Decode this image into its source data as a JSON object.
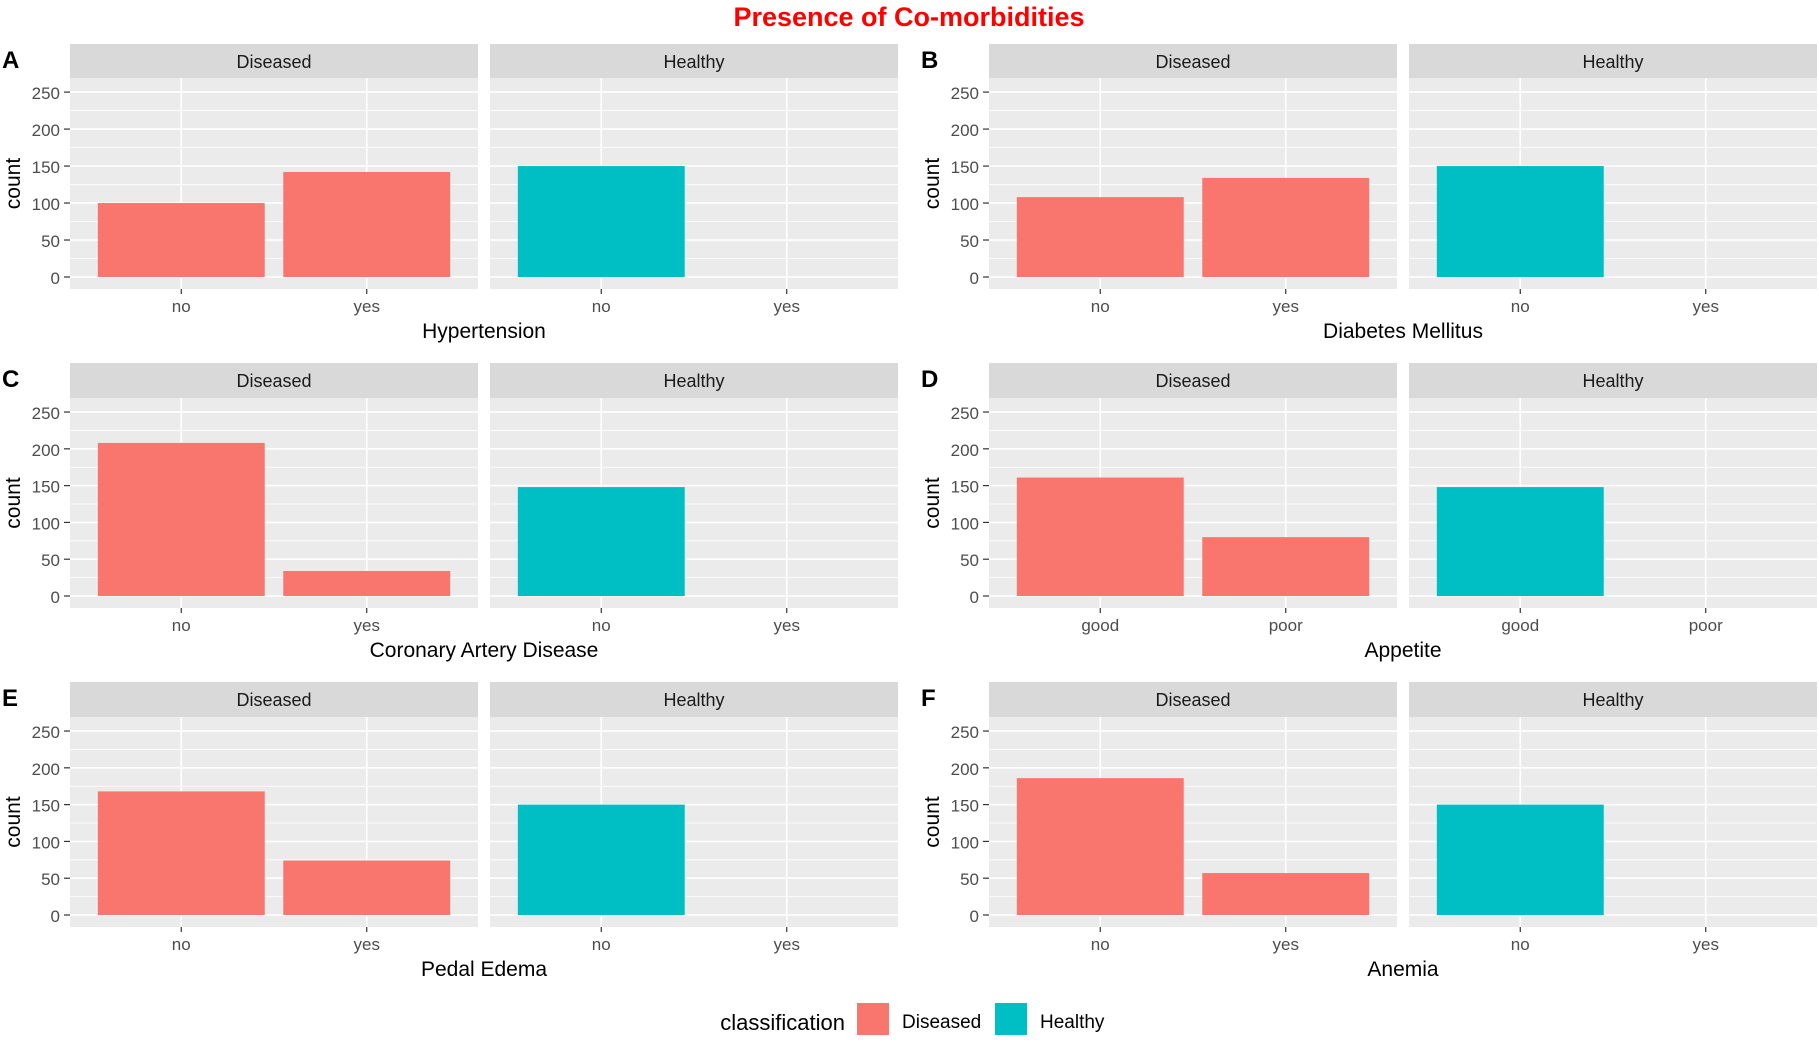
{
  "title": "Presence of Co-morbidities",
  "colors": {
    "title": "#ff0000",
    "Diseased": "#f8766d",
    "Healthy": "#00bfc4",
    "panel_bg": "#ebebeb",
    "strip_bg": "#d9d9d9",
    "grid": "#ffffff",
    "tick_text": "#4d4d4d"
  },
  "legend": {
    "title": "classification",
    "items": [
      "Diseased",
      "Healthy"
    ],
    "position": "bottom"
  },
  "chart_data": [
    {
      "type": "bar",
      "label": "A",
      "xlabel": "Hypertension",
      "ylabel": "count",
      "ylim": [
        0,
        265
      ],
      "yticks": [
        0,
        50,
        100,
        150,
        200,
        250
      ],
      "facets": [
        "Diseased",
        "Healthy"
      ],
      "categories": [
        "no",
        "yes"
      ],
      "series": [
        {
          "name": "Diseased",
          "values": [
            100,
            142
          ]
        },
        {
          "name": "Healthy",
          "values": [
            150,
            0
          ]
        }
      ]
    },
    {
      "type": "bar",
      "label": "B",
      "xlabel": "Diabetes Mellitus",
      "ylabel": "count",
      "ylim": [
        0,
        265
      ],
      "yticks": [
        0,
        50,
        100,
        150,
        200,
        250
      ],
      "facets": [
        "Diseased",
        "Healthy"
      ],
      "categories": [
        "no",
        "yes"
      ],
      "series": [
        {
          "name": "Diseased",
          "values": [
            108,
            134
          ]
        },
        {
          "name": "Healthy",
          "values": [
            150,
            0
          ]
        }
      ]
    },
    {
      "type": "bar",
      "label": "C",
      "xlabel": "Coronary Artery Disease",
      "ylabel": "count",
      "ylim": [
        0,
        265
      ],
      "yticks": [
        0,
        50,
        100,
        150,
        200,
        250
      ],
      "facets": [
        "Diseased",
        "Healthy"
      ],
      "categories": [
        "no",
        "yes"
      ],
      "series": [
        {
          "name": "Diseased",
          "values": [
            208,
            34
          ]
        },
        {
          "name": "Healthy",
          "values": [
            148,
            0
          ]
        }
      ]
    },
    {
      "type": "bar",
      "label": "D",
      "xlabel": "Appetite",
      "ylabel": "count",
      "ylim": [
        0,
        265
      ],
      "yticks": [
        0,
        50,
        100,
        150,
        200,
        250
      ],
      "facets": [
        "Diseased",
        "Healthy"
      ],
      "categories": [
        "good",
        "poor"
      ],
      "series": [
        {
          "name": "Diseased",
          "values": [
            161,
            80
          ]
        },
        {
          "name": "Healthy",
          "values": [
            148,
            0
          ]
        }
      ]
    },
    {
      "type": "bar",
      "label": "E",
      "xlabel": "Pedal Edema",
      "ylabel": "count",
      "ylim": [
        0,
        265
      ],
      "yticks": [
        0,
        50,
        100,
        150,
        200,
        250
      ],
      "facets": [
        "Diseased",
        "Healthy"
      ],
      "categories": [
        "no",
        "yes"
      ],
      "series": [
        {
          "name": "Diseased",
          "values": [
            168,
            74
          ]
        },
        {
          "name": "Healthy",
          "values": [
            150,
            0
          ]
        }
      ]
    },
    {
      "type": "bar",
      "label": "F",
      "xlabel": "Anemia",
      "ylabel": "count",
      "ylim": [
        0,
        265
      ],
      "yticks": [
        0,
        50,
        100,
        150,
        200,
        250
      ],
      "facets": [
        "Diseased",
        "Healthy"
      ],
      "categories": [
        "no",
        "yes"
      ],
      "series": [
        {
          "name": "Diseased",
          "values": [
            186,
            57
          ]
        },
        {
          "name": "Healthy",
          "values": [
            150,
            0
          ]
        }
      ]
    }
  ]
}
